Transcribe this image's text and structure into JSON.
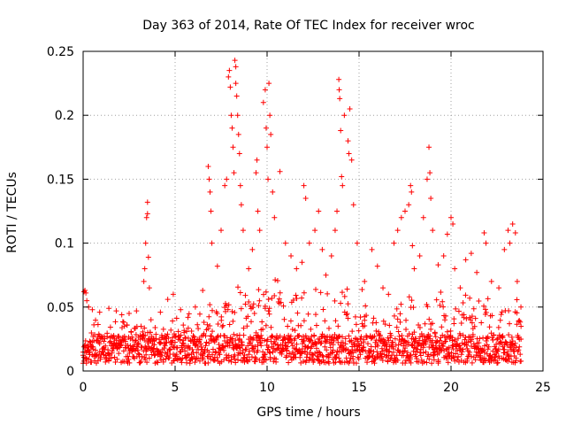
{
  "chart_data": {
    "type": "scatter",
    "title": "Day 363 of 2014, Rate Of TEC Index for receiver wroc",
    "xlabel": "GPS time / hours",
    "ylabel": "ROTI / TECUs",
    "xlim": [
      0,
      25
    ],
    "ylim": [
      0,
      0.25
    ],
    "x_ticks": [
      0,
      5,
      10,
      15,
      20,
      25
    ],
    "x_tick_labels": [
      "0",
      "5",
      "10",
      "15",
      "20",
      "25"
    ],
    "y_ticks": [
      0,
      0.05,
      0.1,
      0.15,
      0.2,
      0.25
    ],
    "y_tick_labels": [
      "0",
      "0.05",
      "0.1",
      "0.15",
      "0.2",
      "0.25"
    ],
    "grid": true,
    "marker": "+",
    "color": "#ff0000",
    "series": [
      {
        "name": "ROTI",
        "points": [
          [
            0.05,
            0.062
          ],
          [
            0.1,
            0.063
          ],
          [
            0.15,
            0.061
          ],
          [
            0.2,
            0.055
          ],
          [
            0.3,
            0.05
          ],
          [
            0.5,
            0.048
          ],
          [
            0.9,
            0.046
          ],
          [
            1.4,
            0.049
          ],
          [
            1.8,
            0.047
          ],
          [
            2.1,
            0.044
          ],
          [
            2.5,
            0.045
          ],
          [
            2.9,
            0.047
          ],
          [
            3.3,
            0.07
          ],
          [
            3.35,
            0.08
          ],
          [
            3.4,
            0.1
          ],
          [
            3.45,
            0.12
          ],
          [
            3.5,
            0.123
          ],
          [
            3.5,
            0.132
          ],
          [
            3.55,
            0.089
          ],
          [
            3.6,
            0.065
          ],
          [
            4.2,
            0.046
          ],
          [
            4.6,
            0.056
          ],
          [
            4.9,
            0.06
          ],
          [
            5.3,
            0.048
          ],
          [
            5.7,
            0.042
          ],
          [
            6.1,
            0.05
          ],
          [
            6.5,
            0.063
          ],
          [
            6.8,
            0.16
          ],
          [
            6.85,
            0.15
          ],
          [
            6.9,
            0.14
          ],
          [
            6.95,
            0.125
          ],
          [
            7.0,
            0.1
          ],
          [
            7.3,
            0.082
          ],
          [
            7.5,
            0.11
          ],
          [
            7.7,
            0.145
          ],
          [
            7.8,
            0.15
          ],
          [
            7.9,
            0.23
          ],
          [
            7.95,
            0.235
          ],
          [
            8.0,
            0.222
          ],
          [
            8.05,
            0.2
          ],
          [
            8.1,
            0.19
          ],
          [
            8.15,
            0.175
          ],
          [
            8.2,
            0.155
          ],
          [
            8.25,
            0.243
          ],
          [
            8.3,
            0.238
          ],
          [
            8.3,
            0.225
          ],
          [
            8.35,
            0.215
          ],
          [
            8.4,
            0.2
          ],
          [
            8.45,
            0.185
          ],
          [
            8.5,
            0.17
          ],
          [
            8.55,
            0.145
          ],
          [
            8.6,
            0.13
          ],
          [
            8.7,
            0.11
          ],
          [
            9.0,
            0.08
          ],
          [
            9.2,
            0.095
          ],
          [
            9.4,
            0.155
          ],
          [
            9.45,
            0.165
          ],
          [
            9.5,
            0.125
          ],
          [
            9.6,
            0.11
          ],
          [
            9.8,
            0.21
          ],
          [
            9.9,
            0.22
          ],
          [
            9.95,
            0.19
          ],
          [
            10.0,
            0.175
          ],
          [
            10.05,
            0.15
          ],
          [
            10.1,
            0.225
          ],
          [
            10.15,
            0.2
          ],
          [
            10.2,
            0.185
          ],
          [
            10.3,
            0.14
          ],
          [
            10.4,
            0.12
          ],
          [
            10.7,
            0.156
          ],
          [
            11.0,
            0.1
          ],
          [
            11.3,
            0.09
          ],
          [
            11.6,
            0.08
          ],
          [
            11.9,
            0.085
          ],
          [
            12.0,
            0.145
          ],
          [
            12.1,
            0.135
          ],
          [
            12.3,
            0.1
          ],
          [
            12.6,
            0.11
          ],
          [
            12.8,
            0.125
          ],
          [
            13.0,
            0.095
          ],
          [
            13.2,
            0.075
          ],
          [
            13.5,
            0.09
          ],
          [
            13.7,
            0.11
          ],
          [
            13.8,
            0.125
          ],
          [
            13.9,
            0.228
          ],
          [
            13.92,
            0.22
          ],
          [
            13.95,
            0.213
          ],
          [
            14.0,
            0.188
          ],
          [
            14.05,
            0.152
          ],
          [
            14.1,
            0.145
          ],
          [
            14.2,
            0.2
          ],
          [
            14.4,
            0.18
          ],
          [
            14.45,
            0.17
          ],
          [
            14.5,
            0.205
          ],
          [
            14.6,
            0.165
          ],
          [
            14.7,
            0.13
          ],
          [
            14.9,
            0.1
          ],
          [
            15.3,
            0.07
          ],
          [
            15.7,
            0.095
          ],
          [
            16.0,
            0.082
          ],
          [
            16.3,
            0.065
          ],
          [
            16.6,
            0.06
          ],
          [
            16.9,
            0.1
          ],
          [
            17.1,
            0.11
          ],
          [
            17.3,
            0.12
          ],
          [
            17.5,
            0.125
          ],
          [
            17.7,
            0.13
          ],
          [
            17.8,
            0.145
          ],
          [
            17.85,
            0.14
          ],
          [
            17.9,
            0.098
          ],
          [
            18.0,
            0.08
          ],
          [
            18.3,
            0.09
          ],
          [
            18.5,
            0.12
          ],
          [
            18.7,
            0.15
          ],
          [
            18.8,
            0.175
          ],
          [
            18.85,
            0.155
          ],
          [
            18.9,
            0.135
          ],
          [
            19.0,
            0.11
          ],
          [
            19.3,
            0.083
          ],
          [
            19.6,
            0.09
          ],
          [
            19.8,
            0.107
          ],
          [
            20.0,
            0.12
          ],
          [
            20.1,
            0.115
          ],
          [
            20.2,
            0.08
          ],
          [
            20.5,
            0.065
          ],
          [
            20.8,
            0.087
          ],
          [
            21.1,
            0.092
          ],
          [
            21.4,
            0.077
          ],
          [
            21.8,
            0.108
          ],
          [
            21.9,
            0.1
          ],
          [
            22.2,
            0.07
          ],
          [
            22.6,
            0.065
          ],
          [
            22.9,
            0.095
          ],
          [
            23.1,
            0.11
          ],
          [
            23.2,
            0.1
          ],
          [
            23.35,
            0.115
          ],
          [
            23.5,
            0.108
          ],
          [
            23.6,
            0.07
          ],
          [
            23.8,
            0.05
          ]
        ]
      }
    ]
  }
}
